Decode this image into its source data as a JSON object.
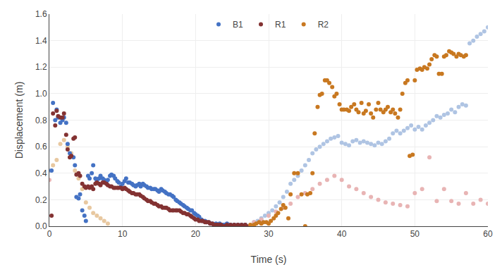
{
  "chart_data": {
    "type": "scatter",
    "xlabel": "Time (s)",
    "ylabel": "Displacement (m)",
    "xlim": [
      0,
      60
    ],
    "ylim": [
      0,
      1.6
    ],
    "xticks": [
      0,
      10,
      20,
      30,
      40,
      50,
      60
    ],
    "yticks": [
      {
        "value": 0,
        "label": "0.0"
      },
      0.2,
      0.4,
      0.6,
      0.8,
      {
        "value": 1,
        "label": "1.0"
      },
      1.2,
      1.4,
      1.6
    ],
    "grid": true,
    "legend": "upper center",
    "marker": "circle",
    "series": [
      {
        "color": "#AFC4E3",
        "x": [
          0.0,
          28.0,
          28.5,
          29.0,
          29.5,
          30.0,
          30.5,
          31.0,
          31.5,
          32.0,
          32.5,
          33.0,
          33.5,
          34.0,
          34.5,
          35.0,
          35.5,
          36.0,
          36.5,
          37.0,
          37.5,
          38.0,
          38.5,
          39.0,
          39.5,
          40.0,
          40.5,
          41.0,
          41.5,
          42.0,
          42.5,
          43.0,
          43.5,
          44.0,
          44.5,
          45.0,
          45.5,
          46.0,
          46.5,
          47.0,
          47.5,
          48.0,
          48.5,
          49.0,
          49.5,
          50.0,
          50.5,
          51.0,
          51.5,
          52.0,
          52.5,
          53.0,
          53.5,
          54.0,
          54.5,
          55.0,
          55.5,
          56.0,
          56.5,
          57.0,
          57.5,
          58.0,
          58.5,
          59.0,
          59.5,
          60.0
        ],
        "values": [
          0.42,
          0.03,
          0.04,
          0.06,
          0.08,
          0.1,
          0.12,
          0.15,
          0.18,
          0.22,
          0.26,
          0.32,
          0.35,
          0.38,
          0.42,
          0.46,
          0.5,
          0.55,
          0.58,
          0.6,
          0.62,
          0.64,
          0.66,
          0.67,
          0.68,
          0.63,
          0.62,
          0.61,
          0.64,
          0.65,
          0.63,
          0.64,
          0.63,
          0.62,
          0.61,
          0.63,
          0.62,
          0.64,
          0.66,
          0.7,
          0.72,
          0.7,
          0.72,
          0.74,
          0.76,
          0.73,
          0.75,
          0.73,
          0.76,
          0.78,
          0.8,
          0.83,
          0.82,
          0.84,
          0.85,
          0.88,
          0.86,
          0.9,
          0.92,
          0.91,
          1.38,
          1.4,
          1.43,
          1.45,
          1.47,
          1.5
        ]
      },
      {
        "color": "#E8B4B4",
        "x": [
          0.0,
          28.0,
          29.0,
          30.0,
          31.0,
          32.0,
          33.0,
          34.0,
          35.0,
          36.0,
          37.0,
          38.0,
          39.0,
          40.0,
          41.0,
          42.0,
          43.0,
          44.0,
          45.0,
          46.0,
          47.0,
          48.0,
          49.0,
          50.0,
          51.0,
          52.0,
          53.0,
          54.0,
          55.0,
          56.0,
          57.0,
          58.0,
          59.0,
          60.0
        ],
        "values": [
          0.35,
          0.03,
          0.05,
          0.08,
          0.11,
          0.14,
          0.17,
          0.22,
          0.25,
          0.28,
          0.32,
          0.35,
          0.38,
          0.35,
          0.3,
          0.28,
          0.25,
          0.22,
          0.2,
          0.18,
          0.17,
          0.16,
          0.15,
          0.25,
          0.28,
          0.52,
          0.19,
          0.28,
          0.19,
          0.17,
          0.25,
          0.17,
          0.2,
          0.17
        ]
      },
      {
        "color": "#E8C8A0",
        "x": [
          0.5,
          1.0,
          1.5,
          2.0,
          2.5,
          3.0,
          3.5,
          4.0,
          4.5,
          5.0,
          5.5,
          6.0,
          6.5,
          7.0,
          7.5,
          8.0
        ],
        "values": [
          0.46,
          0.5,
          0.62,
          0.65,
          0.6,
          0.55,
          0.42,
          0.36,
          0.28,
          0.18,
          0.14,
          0.1,
          0.08,
          0.06,
          0.04,
          0.02
        ]
      },
      {
        "name": "B1",
        "color": "#4472C4",
        "x": [
          0.3,
          0.5,
          0.8,
          1.0,
          1.2,
          1.5,
          1.8,
          2.0,
          2.3,
          2.5,
          2.8,
          3.0,
          3.3,
          3.5,
          3.7,
          4.0,
          4.2,
          4.5,
          4.8,
          5.0,
          5.3,
          5.5,
          5.8,
          6.0,
          6.3,
          6.5,
          6.8,
          7.0,
          7.3,
          7.5,
          7.8,
          8.0,
          8.3,
          8.5,
          8.8,
          9.0,
          9.3,
          9.5,
          9.8,
          10.0,
          10.3,
          10.5,
          10.8,
          11.0,
          11.3,
          11.5,
          11.8,
          12.0,
          12.3,
          12.5,
          12.8,
          13.0,
          13.3,
          13.5,
          13.8,
          14.0,
          14.3,
          14.5,
          14.8,
          15.0,
          15.3,
          15.5,
          15.8,
          16.0,
          16.3,
          16.5,
          16.8,
          17.0,
          17.3,
          17.5,
          17.8,
          18.0,
          18.3,
          18.5,
          18.8,
          19.0,
          19.3,
          19.5,
          19.8,
          20.0,
          20.3,
          20.5,
          20.8,
          21.0,
          21.3,
          21.5,
          21.8,
          22.0,
          22.3,
          22.5,
          22.8,
          23.0,
          23.3,
          23.5,
          23.8,
          24.0,
          24.3,
          24.5,
          24.8,
          25.0,
          25.3,
          25.5,
          25.8,
          26.0,
          26.3,
          26.5,
          26.8,
          27.0
        ],
        "values": [
          0.42,
          0.93,
          0.8,
          0.88,
          0.82,
          0.78,
          0.8,
          0.82,
          0.78,
          0.62,
          0.55,
          0.53,
          0.52,
          0.46,
          0.22,
          0.21,
          0.24,
          0.12,
          0.08,
          0.04,
          0.38,
          0.36,
          0.4,
          0.46,
          0.36,
          0.34,
          0.36,
          0.38,
          0.36,
          0.35,
          0.33,
          0.35,
          0.38,
          0.39,
          0.38,
          0.36,
          0.34,
          0.33,
          0.3,
          0.32,
          0.34,
          0.36,
          0.33,
          0.33,
          0.32,
          0.31,
          0.3,
          0.31,
          0.32,
          0.3,
          0.32,
          0.31,
          0.3,
          0.29,
          0.29,
          0.28,
          0.28,
          0.28,
          0.27,
          0.26,
          0.28,
          0.27,
          0.26,
          0.25,
          0.24,
          0.24,
          0.23,
          0.22,
          0.2,
          0.19,
          0.18,
          0.17,
          0.16,
          0.15,
          0.14,
          0.13,
          0.12,
          0.12,
          0.1,
          0.09,
          0.08,
          0.07,
          0.05,
          0.04,
          0.04,
          0.03,
          0.03,
          0.02,
          0.02,
          0.01,
          0.02,
          0.01,
          0.02,
          0.01,
          0.01,
          0.01,
          0.02,
          0.01,
          0.01,
          0.0,
          0.01,
          0.0,
          0.01,
          0.0,
          0.01,
          0.0,
          0.01,
          0.0
        ]
      },
      {
        "name": "R1",
        "color": "#833232",
        "x": [
          0.3,
          0.5,
          0.8,
          1.0,
          1.2,
          1.5,
          1.8,
          2.0,
          2.3,
          2.5,
          2.8,
          3.0,
          3.3,
          3.5,
          3.7,
          4.0,
          4.2,
          4.5,
          4.8,
          5.0,
          5.3,
          5.5,
          5.8,
          6.0,
          6.3,
          6.5,
          6.8,
          7.0,
          7.3,
          7.5,
          7.8,
          8.0,
          8.3,
          8.5,
          8.8,
          9.0,
          9.3,
          9.5,
          9.8,
          10.0,
          10.3,
          10.5,
          10.8,
          11.0,
          11.3,
          11.5,
          11.8,
          12.0,
          12.3,
          12.5,
          12.8,
          13.0,
          13.3,
          13.5,
          13.8,
          14.0,
          14.3,
          14.5,
          14.8,
          15.0,
          15.3,
          15.5,
          15.8,
          16.0,
          16.3,
          16.5,
          16.8,
          17.0,
          17.3,
          17.5,
          17.8,
          18.0,
          18.3,
          18.5,
          18.8,
          19.0,
          19.3,
          19.5,
          19.8,
          20.0,
          20.3,
          20.5,
          20.8,
          21.0,
          21.3,
          21.5,
          21.8,
          22.0,
          22.3,
          22.5,
          22.8,
          23.0,
          23.3,
          23.5,
          23.8,
          24.0,
          24.3,
          24.5,
          24.8,
          25.0,
          25.3,
          25.5,
          25.8,
          26.0,
          26.3,
          26.5,
          26.8,
          27.0
        ],
        "values": [
          0.08,
          0.85,
          0.76,
          0.87,
          0.83,
          0.82,
          0.82,
          0.85,
          0.69,
          0.58,
          0.52,
          0.53,
          0.66,
          0.67,
          0.39,
          0.4,
          0.38,
          0.32,
          0.3,
          0.29,
          0.3,
          0.29,
          0.3,
          0.28,
          0.32,
          0.33,
          0.32,
          0.31,
          0.33,
          0.33,
          0.32,
          0.31,
          0.3,
          0.3,
          0.29,
          0.29,
          0.29,
          0.29,
          0.29,
          0.28,
          0.29,
          0.28,
          0.27,
          0.26,
          0.25,
          0.25,
          0.24,
          0.24,
          0.24,
          0.23,
          0.22,
          0.21,
          0.2,
          0.19,
          0.19,
          0.18,
          0.17,
          0.17,
          0.16,
          0.15,
          0.15,
          0.14,
          0.14,
          0.14,
          0.13,
          0.12,
          0.12,
          0.12,
          0.12,
          0.12,
          0.12,
          0.11,
          0.1,
          0.1,
          0.09,
          0.09,
          0.08,
          0.07,
          0.06,
          0.05,
          0.05,
          0.04,
          0.04,
          0.04,
          0.03,
          0.03,
          0.03,
          0.02,
          0.02,
          0.01,
          0.01,
          0.01,
          0.01,
          0.01,
          0.0,
          0.0,
          0.01,
          0.0,
          0.01,
          0.0,
          0.01,
          0.0,
          0.01,
          0.0,
          0.01,
          0.0,
          0.01,
          0.0
        ]
      },
      {
        "name": "R2",
        "color": "#C87820",
        "x": [
          27.5,
          28.0,
          28.3,
          28.7,
          29.0,
          29.3,
          29.7,
          30.0,
          30.3,
          30.7,
          31.0,
          31.3,
          31.7,
          32.0,
          32.3,
          32.7,
          33.0,
          33.5,
          34.0,
          34.5,
          35.0,
          35.3,
          35.7,
          36.0,
          36.3,
          36.7,
          37.0,
          37.3,
          37.7,
          38.0,
          38.3,
          38.7,
          39.0,
          39.3,
          39.7,
          40.0,
          40.3,
          40.7,
          41.0,
          41.3,
          41.7,
          42.0,
          42.3,
          42.7,
          43.0,
          43.3,
          43.7,
          44.0,
          44.3,
          44.7,
          45.0,
          45.3,
          45.7,
          46.0,
          46.3,
          46.7,
          47.0,
          47.3,
          47.7,
          48.0,
          48.3,
          48.7,
          49.0,
          49.3,
          49.7,
          50.0,
          50.3,
          50.7,
          51.0,
          51.3,
          51.7,
          52.0,
          52.3,
          52.7,
          53.0,
          53.3,
          53.7,
          54.0,
          54.3,
          54.7,
          55.0,
          55.3,
          55.7,
          56.0,
          56.3,
          56.7,
          57.0
        ],
        "values": [
          0.01,
          0.01,
          0.02,
          0.03,
          0.02,
          0.03,
          0.03,
          0.02,
          0.04,
          0.06,
          0.08,
          0.1,
          0.13,
          0.16,
          0.14,
          0.06,
          0.24,
          0.4,
          0.4,
          0.24,
          0.0,
          0.24,
          0.25,
          0.4,
          0.7,
          0.9,
          0.99,
          1.0,
          1.1,
          1.1,
          1.08,
          1.05,
          0.98,
          1.0,
          0.92,
          0.88,
          0.88,
          0.88,
          0.87,
          0.9,
          0.92,
          0.88,
          0.86,
          0.93,
          0.85,
          0.87,
          0.92,
          0.85,
          0.82,
          0.88,
          0.93,
          0.88,
          0.86,
          0.88,
          0.9,
          0.86,
          0.88,
          0.85,
          0.82,
          0.88,
          1.0,
          1.08,
          1.1,
          0.53,
          0.54,
          1.1,
          1.18,
          1.19,
          1.18,
          1.2,
          1.19,
          1.22,
          1.26,
          1.29,
          1.28,
          1.15,
          1.15,
          1.28,
          1.29,
          1.32,
          1.31,
          1.3,
          1.28,
          1.3,
          1.29,
          1.28,
          1.29
        ]
      }
    ]
  }
}
